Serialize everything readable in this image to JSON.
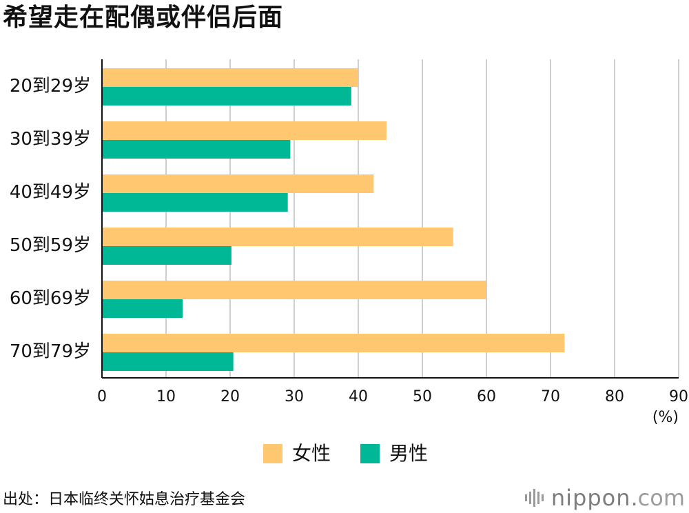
{
  "title": "希望走在配偶或伴侣后面",
  "chart_data": {
    "type": "bar",
    "orientation": "horizontal",
    "categories": [
      "20到29岁",
      "30到39岁",
      "40到49岁",
      "50到59岁",
      "60到69岁",
      "70到79岁"
    ],
    "series": [
      {
        "name": "女性",
        "color": "#FFC870",
        "values": [
          40.0,
          44.4,
          42.4,
          54.8,
          60.0,
          72.2
        ]
      },
      {
        "name": "男性",
        "color": "#00B896",
        "values": [
          38.9,
          29.4,
          29.0,
          20.2,
          12.6,
          20.5
        ]
      }
    ],
    "xticks": [
      0,
      10,
      20,
      30,
      40,
      50,
      60,
      70,
      80,
      90
    ],
    "xlim": [
      0,
      90
    ],
    "xunit": "(%)",
    "grid": true,
    "legend_position": "bottom-center"
  },
  "legend": [
    {
      "label": "女性",
      "color": "#FFC870"
    },
    {
      "label": "男性",
      "color": "#00B896"
    }
  ],
  "source": "出处：日本临终关怀姑息治疗基金会",
  "brand": {
    "name": "nippon",
    "dot": ".",
    "tld": "com"
  }
}
